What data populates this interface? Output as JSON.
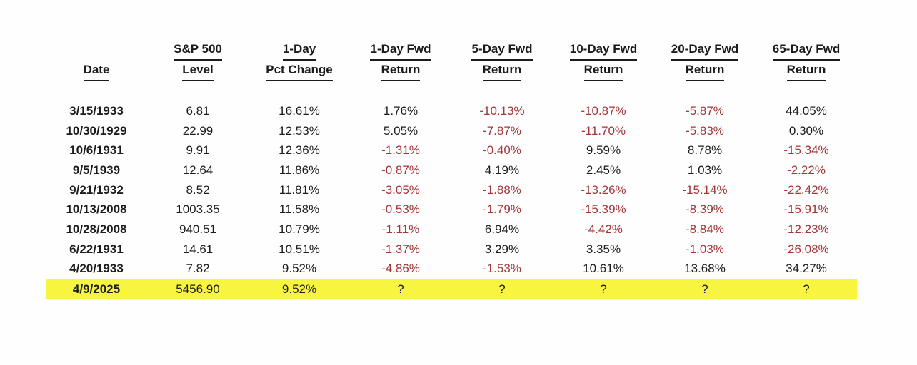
{
  "colors": {
    "negative_value": "#A23639",
    "positive_value": "#1c1c1c",
    "highlight_row": "#F7F53F",
    "header_text": "#1b1b1b"
  },
  "chart_data": {
    "type": "table",
    "title": "",
    "columns": [
      {
        "id": "date",
        "lines": [
          "Date"
        ]
      },
      {
        "id": "level",
        "lines": [
          "S&P 500",
          "Level"
        ]
      },
      {
        "id": "pct-change",
        "lines": [
          "1-Day",
          "Pct Change"
        ]
      },
      {
        "id": "fwd-1d",
        "lines": [
          "1-Day Fwd",
          "Return"
        ]
      },
      {
        "id": "fwd-5d",
        "lines": [
          "5-Day Fwd",
          "Return"
        ]
      },
      {
        "id": "fwd-10d",
        "lines": [
          "10-Day Fwd",
          "Return"
        ]
      },
      {
        "id": "fwd-20d",
        "lines": [
          "20-Day Fwd",
          "Return"
        ]
      },
      {
        "id": "fwd-65d",
        "lines": [
          "65-Day Fwd",
          "Return"
        ]
      }
    ],
    "rows": [
      {
        "highlighted": false,
        "cells": [
          "3/15/1933",
          "6.81",
          "16.61%",
          "1.76%",
          "-10.13%",
          "-10.87%",
          "-5.87%",
          "44.05%"
        ]
      },
      {
        "highlighted": false,
        "cells": [
          "10/30/1929",
          "22.99",
          "12.53%",
          "5.05%",
          "-7.87%",
          "-11.70%",
          "-5.83%",
          "0.30%"
        ]
      },
      {
        "highlighted": false,
        "cells": [
          "10/6/1931",
          "9.91",
          "12.36%",
          "-1.31%",
          "-0.40%",
          "9.59%",
          "8.78%",
          "-15.34%"
        ]
      },
      {
        "highlighted": false,
        "cells": [
          "9/5/1939",
          "12.64",
          "11.86%",
          "-0.87%",
          "4.19%",
          "2.45%",
          "1.03%",
          "-2.22%"
        ]
      },
      {
        "highlighted": false,
        "cells": [
          "9/21/1932",
          "8.52",
          "11.81%",
          "-3.05%",
          "-1.88%",
          "-13.26%",
          "-15.14%",
          "-22.42%"
        ]
      },
      {
        "highlighted": false,
        "cells": [
          "10/13/2008",
          "1003.35",
          "11.58%",
          "-0.53%",
          "-1.79%",
          "-15.39%",
          "-8.39%",
          "-15.91%"
        ]
      },
      {
        "highlighted": false,
        "cells": [
          "10/28/2008",
          "940.51",
          "10.79%",
          "-1.11%",
          "6.94%",
          "-4.42%",
          "-8.84%",
          "-12.23%"
        ]
      },
      {
        "highlighted": false,
        "cells": [
          "6/22/1931",
          "14.61",
          "10.51%",
          "-1.37%",
          "3.29%",
          "3.35%",
          "-1.03%",
          "-26.08%"
        ]
      },
      {
        "highlighted": false,
        "cells": [
          "4/20/1933",
          "7.82",
          "9.52%",
          "-4.86%",
          "-1.53%",
          "10.61%",
          "13.68%",
          "34.27%"
        ]
      },
      {
        "highlighted": true,
        "cells": [
          "4/9/2025",
          "5456.90",
          "9.52%",
          "?",
          "?",
          "?",
          "?",
          "?"
        ]
      }
    ],
    "highlighted_row_date": "4/9/2025",
    "legend_position": "none",
    "grid": false
  }
}
